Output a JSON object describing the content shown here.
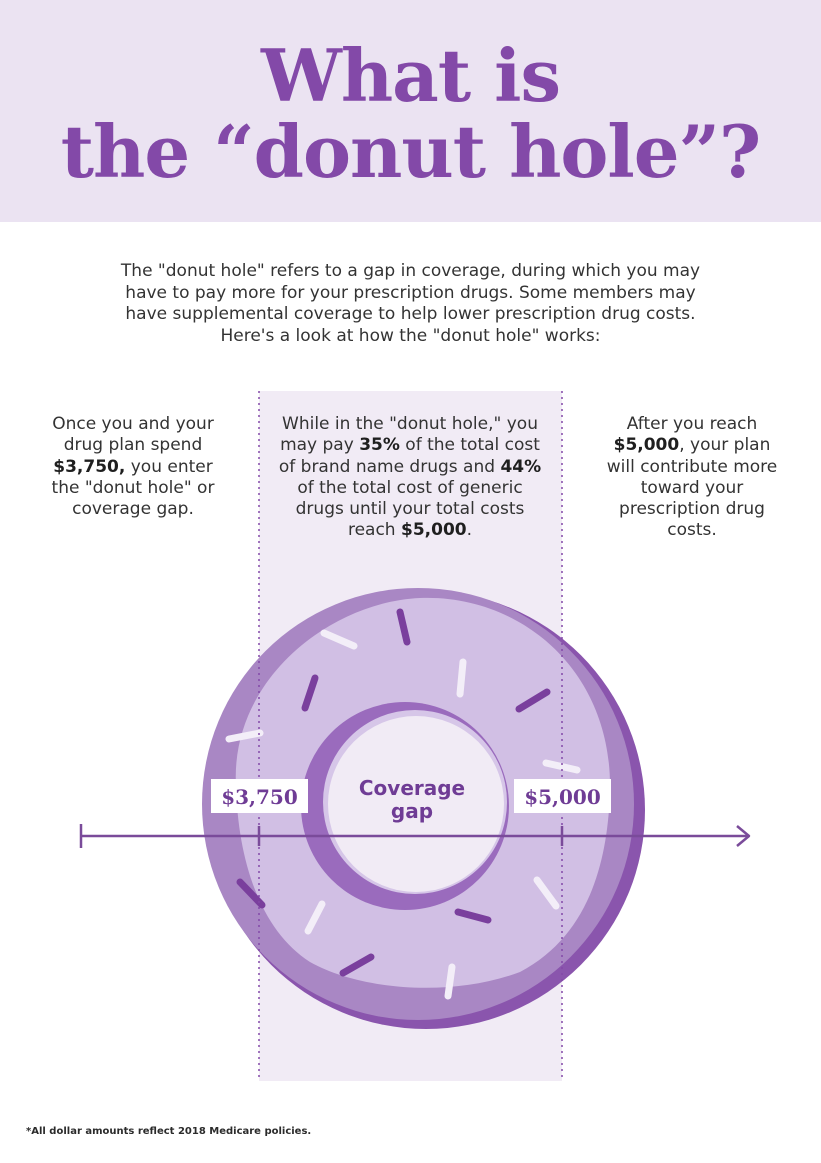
{
  "header": {
    "title_line1": "What is",
    "title_line2": "the “donut hole”?"
  },
  "intro": "The \"donut hole\" refers to a gap in coverage, during which you may have to pay more for your prescription drugs. Some members may have supplemental coverage to help lower prescription drug costs. Here's a look at how the \"donut hole\" works:",
  "columns": {
    "left": {
      "t1": "Once you and your drug plan spend ",
      "b1": "$3,750,",
      "t2": " you enter the \"donut hole\" or coverage gap."
    },
    "middle": {
      "t1": "While in the \"donut hole,\" you may pay ",
      "b1": "35%",
      "t2": " of the total cost of brand name drugs and ",
      "b2": "44%",
      "t3": " of the total cost of generic drugs until your total costs reach ",
      "b3": "$5,000",
      "t4": "."
    },
    "right": {
      "t1": "After you reach ",
      "b1": "$5,000",
      "t2": ", your plan will contribute more toward your prescription drug costs."
    }
  },
  "diagram": {
    "start_label": "$3,750",
    "end_label": "$5,000",
    "center_line1": "Coverage",
    "center_line2": "gap"
  },
  "footnote": "*All dollar amounts reflect 2018 Medicare policies.",
  "colors": {
    "brand_purple": "#8349a8",
    "header_bg": "#ebe3f2",
    "gap_band": "#f1ebf5",
    "donut_light": "#d8c7ea",
    "donut_mid": "#a987c4",
    "donut_dark": "#8a55ad",
    "sprinkle_dark": "#7a3f9d",
    "axis": "#7a4b9a"
  }
}
